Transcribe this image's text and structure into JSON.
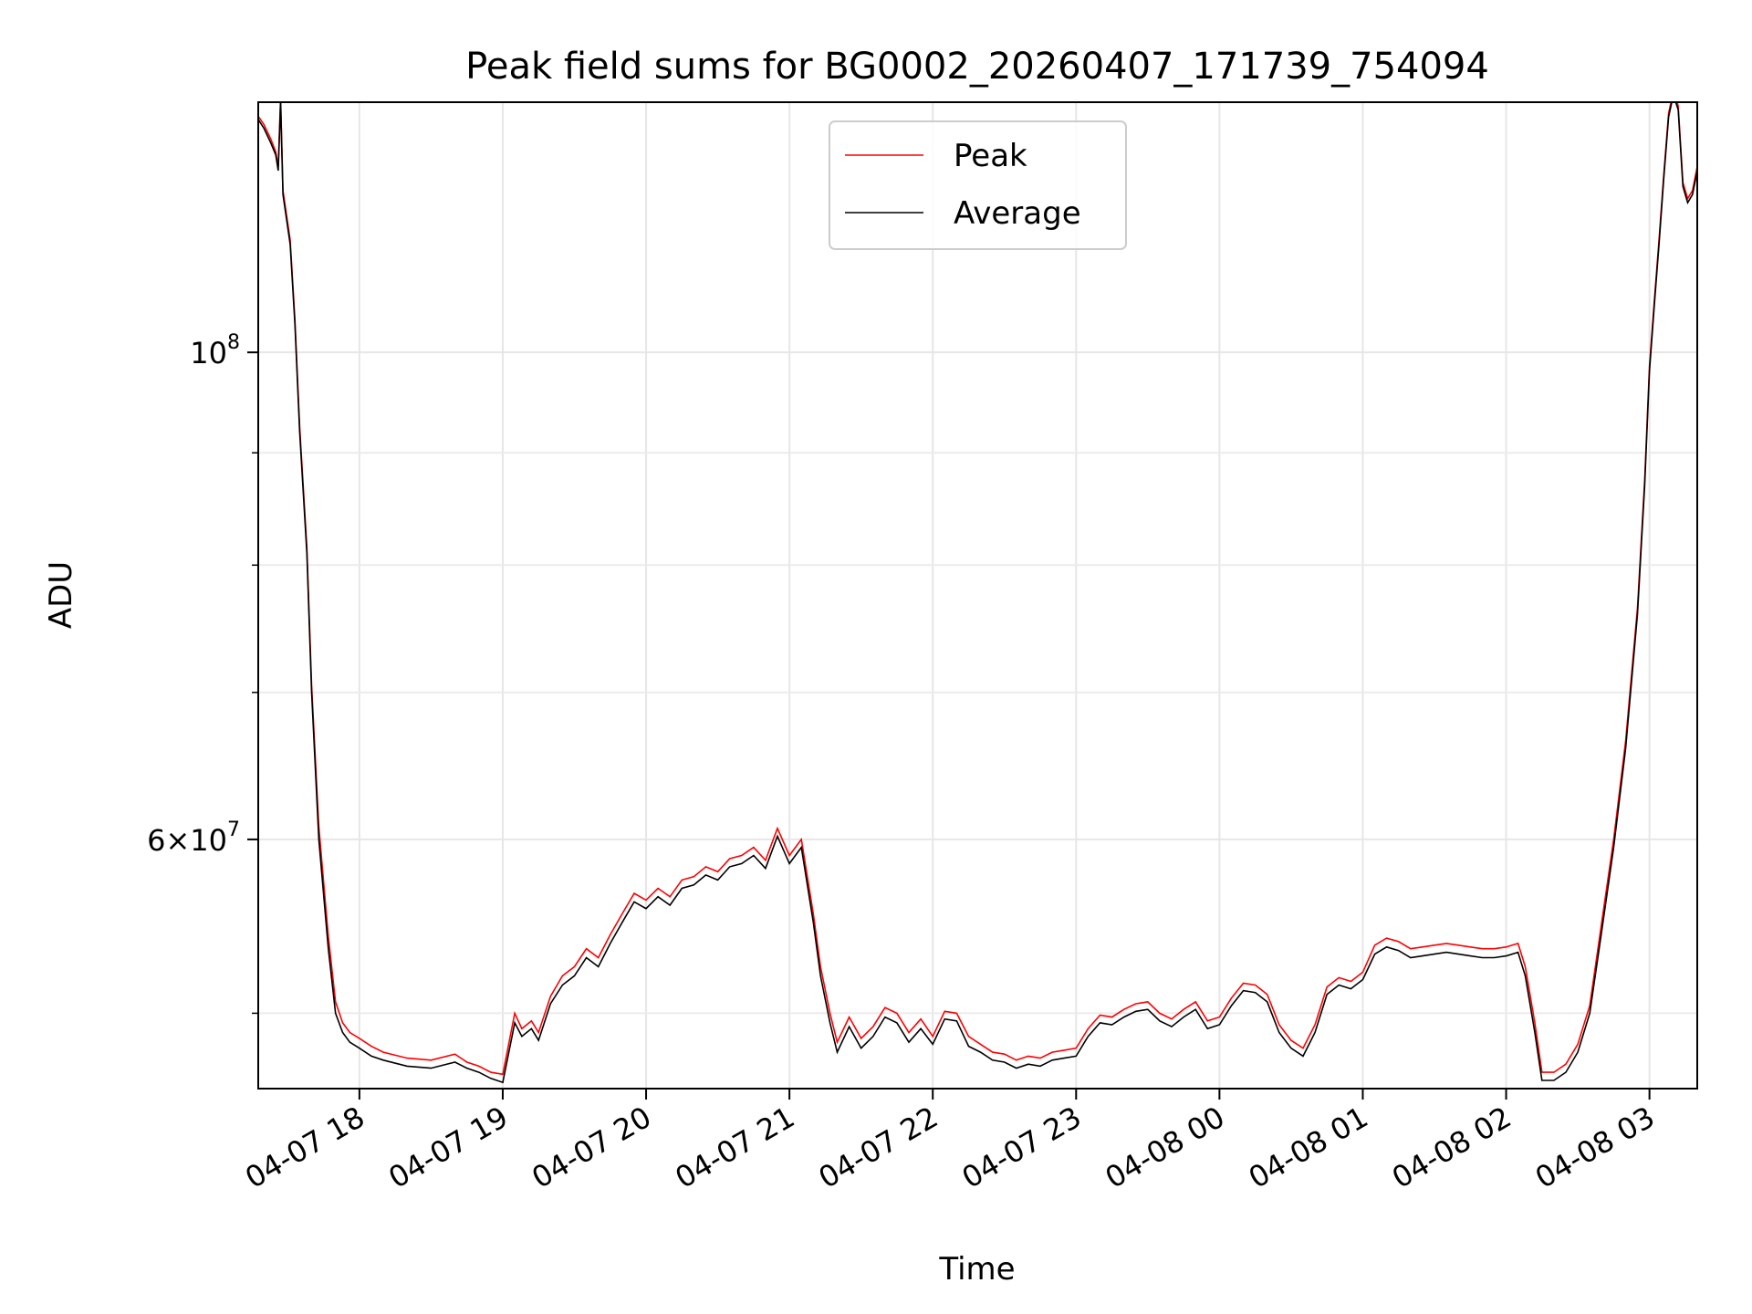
{
  "chart_data": {
    "type": "line",
    "title": "Peak field sums for BG0002_20260407_171739_754094",
    "xlabel": "Time",
    "ylabel": "ADU",
    "yscale": "log",
    "grid": true,
    "legend_placement": "upper-center",
    "xlim": [
      "2026-04-07 17:17:39",
      "2026-04-08 03:20:00"
    ],
    "ylim": [
      46200000,
      130000000
    ],
    "x_ticks": [
      {
        "value": "2026-04-07 18:00",
        "label": "04-07 18"
      },
      {
        "value": "2026-04-07 19:00",
        "label": "04-07 19"
      },
      {
        "value": "2026-04-07 20:00",
        "label": "04-07 20"
      },
      {
        "value": "2026-04-07 21:00",
        "label": "04-07 21"
      },
      {
        "value": "2026-04-07 22:00",
        "label": "04-07 22"
      },
      {
        "value": "2026-04-07 23:00",
        "label": "04-07 23"
      },
      {
        "value": "2026-04-08 00:00",
        "label": "04-08 00"
      },
      {
        "value": "2026-04-08 01:00",
        "label": "04-08 01"
      },
      {
        "value": "2026-04-08 02:00",
        "label": "04-08 02"
      },
      {
        "value": "2026-04-08 03:00",
        "label": "04-08 03"
      }
    ],
    "y_major_ticks": [
      {
        "value": 60000000,
        "mantissa": "6",
        "base": "10",
        "exponent": "7"
      },
      {
        "value": 100000000,
        "mantissa": "",
        "base": "10",
        "exponent": "8"
      }
    ],
    "y_minor_ticks": [
      50000000,
      70000000,
      80000000,
      90000000
    ],
    "series": [
      {
        "name": "Peak",
        "color": "#ff0000"
      },
      {
        "name": "Average",
        "color": "#000000"
      }
    ],
    "x": [
      "2026-04-07 17:17",
      "2026-04-07 17:20",
      "2026-04-07 17:23",
      "2026-04-07 17:25",
      "2026-04-07 17:26",
      "2026-04-07 17:27",
      "2026-04-07 17:28",
      "2026-04-07 17:31",
      "2026-04-07 17:33",
      "2026-04-07 17:35",
      "2026-04-07 17:38",
      "2026-04-07 17:40",
      "2026-04-07 17:43",
      "2026-04-07 17:47",
      "2026-04-07 17:50",
      "2026-04-07 17:53",
      "2026-04-07 17:56",
      "2026-04-07 18:00",
      "2026-04-07 18:05",
      "2026-04-07 18:10",
      "2026-04-07 18:20",
      "2026-04-07 18:30",
      "2026-04-07 18:40",
      "2026-04-07 18:45",
      "2026-04-07 18:50",
      "2026-04-07 18:55",
      "2026-04-07 19:00",
      "2026-04-07 19:05",
      "2026-04-07 19:08",
      "2026-04-07 19:12",
      "2026-04-07 19:15",
      "2026-04-07 19:20",
      "2026-04-07 19:25",
      "2026-04-07 19:30",
      "2026-04-07 19:35",
      "2026-04-07 19:40",
      "2026-04-07 19:45",
      "2026-04-07 19:50",
      "2026-04-07 19:55",
      "2026-04-07 20:00",
      "2026-04-07 20:05",
      "2026-04-07 20:10",
      "2026-04-07 20:15",
      "2026-04-07 20:20",
      "2026-04-07 20:25",
      "2026-04-07 20:30",
      "2026-04-07 20:35",
      "2026-04-07 20:40",
      "2026-04-07 20:45",
      "2026-04-07 20:50",
      "2026-04-07 20:55",
      "2026-04-07 21:00",
      "2026-04-07 21:05",
      "2026-04-07 21:10",
      "2026-04-07 21:13",
      "2026-04-07 21:17",
      "2026-04-07 21:20",
      "2026-04-07 21:25",
      "2026-04-07 21:30",
      "2026-04-07 21:35",
      "2026-04-07 21:40",
      "2026-04-07 21:45",
      "2026-04-07 21:50",
      "2026-04-07 21:55",
      "2026-04-07 22:00",
      "2026-04-07 22:05",
      "2026-04-07 22:10",
      "2026-04-07 22:15",
      "2026-04-07 22:20",
      "2026-04-07 22:25",
      "2026-04-07 22:30",
      "2026-04-07 22:35",
      "2026-04-07 22:40",
      "2026-04-07 22:45",
      "2026-04-07 22:50",
      "2026-04-07 22:55",
      "2026-04-07 23:00",
      "2026-04-07 23:05",
      "2026-04-07 23:10",
      "2026-04-07 23:15",
      "2026-04-07 23:20",
      "2026-04-07 23:25",
      "2026-04-07 23:30",
      "2026-04-07 23:35",
      "2026-04-07 23:40",
      "2026-04-07 23:45",
      "2026-04-07 23:50",
      "2026-04-07 23:55",
      "2026-04-08 00:00",
      "2026-04-08 00:05",
      "2026-04-08 00:10",
      "2026-04-08 00:15",
      "2026-04-08 00:20",
      "2026-04-08 00:25",
      "2026-04-08 00:30",
      "2026-04-08 00:35",
      "2026-04-08 00:40",
      "2026-04-08 00:45",
      "2026-04-08 00:50",
      "2026-04-08 00:55",
      "2026-04-08 01:00",
      "2026-04-08 01:05",
      "2026-04-08 01:10",
      "2026-04-08 01:15",
      "2026-04-08 01:20",
      "2026-04-08 01:25",
      "2026-04-08 01:30",
      "2026-04-08 01:35",
      "2026-04-08 01:40",
      "2026-04-08 01:45",
      "2026-04-08 01:50",
      "2026-04-08 01:55",
      "2026-04-08 02:00",
      "2026-04-08 02:05",
      "2026-04-08 02:08",
      "2026-04-08 02:12",
      "2026-04-08 02:15",
      "2026-04-08 02:20",
      "2026-04-08 02:25",
      "2026-04-08 02:30",
      "2026-04-08 02:35",
      "2026-04-08 02:40",
      "2026-04-08 02:45",
      "2026-04-08 02:50",
      "2026-04-08 02:55",
      "2026-04-08 02:58",
      "2026-04-08 03:00",
      "2026-04-08 03:02",
      "2026-04-08 03:04",
      "2026-04-08 03:06",
      "2026-04-08 03:08",
      "2026-04-08 03:10",
      "2026-04-08 03:12",
      "2026-04-08 03:14",
      "2026-04-08 03:16",
      "2026-04-08 03:18",
      "2026-04-08 03:20"
    ],
    "average": [
      128000000,
      126500000,
      124500000,
      123000000,
      121000000,
      130000000,
      118000000,
      112000000,
      103000000,
      92000000,
      81000000,
      70000000,
      60000000,
      53500000,
      50000000,
      49000000,
      48500000,
      48200000,
      47800000,
      47600000,
      47300000,
      47200000,
      47500000,
      47200000,
      47000000,
      46700000,
      46500000,
      49500000,
      48800000,
      49200000,
      48600000,
      50500000,
      51500000,
      52000000,
      53000000,
      52500000,
      53800000,
      55000000,
      56200000,
      55800000,
      56500000,
      56000000,
      57000000,
      57200000,
      57800000,
      57500000,
      58300000,
      58500000,
      59000000,
      58200000,
      60200000,
      58500000,
      59500000,
      55000000,
      52000000,
      49500000,
      48000000,
      49300000,
      48200000,
      48800000,
      49800000,
      49500000,
      48500000,
      49200000,
      48400000,
      49700000,
      49600000,
      48300000,
      48000000,
      47600000,
      47500000,
      47200000,
      47400000,
      47300000,
      47600000,
      47700000,
      47800000,
      48800000,
      49500000,
      49400000,
      49800000,
      50100000,
      50200000,
      49600000,
      49300000,
      49800000,
      50200000,
      49200000,
      49400000,
      50400000,
      51200000,
      51100000,
      50600000,
      49000000,
      48200000,
      47800000,
      49000000,
      51000000,
      51500000,
      51300000,
      51800000,
      53200000,
      53600000,
      53400000,
      53000000,
      53100000,
      53200000,
      53300000,
      53200000,
      53100000,
      53000000,
      53000000,
      53100000,
      53300000,
      52000000,
      49000000,
      46600000,
      46600000,
      47000000,
      48000000,
      50000000,
      54500000,
      59500000,
      66000000,
      76000000,
      87000000,
      98000000,
      105000000,
      112000000,
      120000000,
      128000000,
      131000000,
      129000000,
      119000000,
      117000000,
      118000000,
      121000000
    ],
    "peak": [
      128400000,
      127000000,
      125000000,
      123400000,
      121500000,
      130500000,
      118500000,
      112500000,
      103500000,
      92500000,
      81500000,
      70500000,
      60800000,
      54200000,
      50600000,
      49500000,
      49000000,
      48700000,
      48300000,
      48000000,
      47700000,
      47600000,
      47900000,
      47500000,
      47300000,
      47000000,
      46900000,
      50000000,
      49200000,
      49600000,
      49000000,
      50900000,
      52000000,
      52500000,
      53500000,
      53000000,
      54300000,
      55500000,
      56700000,
      56300000,
      57000000,
      56500000,
      57500000,
      57700000,
      58300000,
      58000000,
      58800000,
      59000000,
      59500000,
      58700000,
      60700000,
      59000000,
      60000000,
      55500000,
      52500000,
      50000000,
      48500000,
      49800000,
      48700000,
      49300000,
      50300000,
      50000000,
      49000000,
      49700000,
      48800000,
      50100000,
      50000000,
      48800000,
      48400000,
      48000000,
      47900000,
      47600000,
      47800000,
      47700000,
      48000000,
      48100000,
      48200000,
      49200000,
      49900000,
      49800000,
      50200000,
      50500000,
      50600000,
      50000000,
      49700000,
      50200000,
      50600000,
      49600000,
      49800000,
      50800000,
      51600000,
      51500000,
      51000000,
      49400000,
      48600000,
      48200000,
      49400000,
      51400000,
      51900000,
      51700000,
      52200000,
      53700000,
      54100000,
      53900000,
      53500000,
      53600000,
      53700000,
      53800000,
      53700000,
      53600000,
      53500000,
      53500000,
      53600000,
      53800000,
      52500000,
      49500000,
      47000000,
      47000000,
      47400000,
      48400000,
      50400000,
      55000000,
      60000000,
      66500000,
      76500000,
      87500000,
      98500000,
      105500000,
      112500000,
      120500000,
      128500000,
      131500000,
      129500000,
      119500000,
      117500000,
      118500000,
      121500000
    ]
  }
}
